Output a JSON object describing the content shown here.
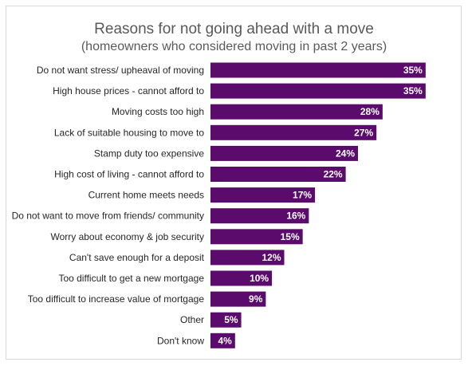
{
  "chart_data": {
    "type": "bar",
    "orientation": "horizontal",
    "title": "Reasons for not going ahead with a move",
    "subtitle": "(homeowners who considered moving in past 2 years)",
    "categories": [
      "Do not want stress/ upheaval of moving",
      "High house prices - cannot afford to",
      "Moving costs too high",
      "Lack of suitable housing to move to",
      "Stamp duty too expensive",
      "High cost of living - cannot afford to",
      "Current home meets needs",
      "Do not want to move from friends/ community",
      "Worry about economy & job security",
      "Can't save enough for a deposit",
      "Too difficult to get a new mortgage",
      "Too difficult to increase value of mortgage",
      "Other",
      "Don't know"
    ],
    "values": [
      35,
      35,
      28,
      27,
      24,
      22,
      17,
      16,
      15,
      12,
      10,
      9,
      5,
      4
    ],
    "value_labels": [
      "35%",
      "35%",
      "28%",
      "27%",
      "24%",
      "22%",
      "17%",
      "16%",
      "15%",
      "12%",
      "10%",
      "9%",
      "5%",
      "4%"
    ],
    "unit": "%",
    "bar_color": "#5b0b6b",
    "xlim": [
      0,
      35
    ],
    "grid": false,
    "legend": "none"
  }
}
